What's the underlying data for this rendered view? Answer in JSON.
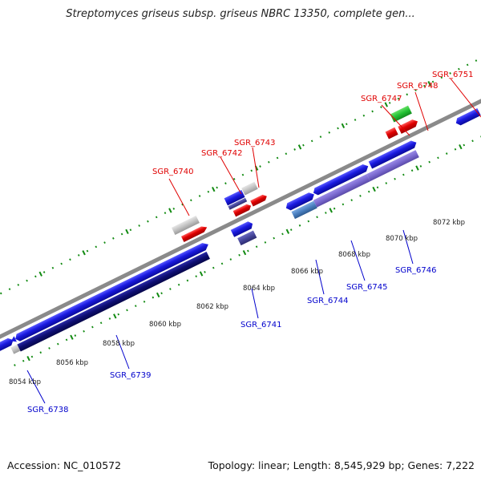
{
  "title": "Streptomyces griseus subsp. griseus NBRC 13350, complete gen...",
  "footer": {
    "accession": "Accession: NC_010572",
    "stats": "Topology: linear; Length: 8,545,929 bp; Genes: 7,222"
  },
  "colors": {
    "backbone": "#8a8a8a",
    "tick": "#118a11",
    "forward_cds": "#1a1ae0",
    "reverse_cds": "#e00000",
    "blue_label": "#0000cc",
    "red_label": "#e00000",
    "other_feature": "#c0c0c0",
    "rna_feature": "#22c033",
    "dark_block": "#0d0d70",
    "purple_block": "#7b6ad0",
    "steel_block": "#4a7fc0"
  },
  "scale_labels": [
    "8054 kbp",
    "8056 kbp",
    "8058 kbp",
    "8060 kbp",
    "8062 kbp",
    "8064 kbp",
    "8066 kbp",
    "8068 kbp",
    "8070 kbp",
    "8072 kbp"
  ],
  "upper_genes": [
    "SGR_6740",
    "SGR_6742",
    "SGR_6743",
    "SGR_6747",
    "SGR_6748",
    "SGR_6751"
  ],
  "lower_genes": [
    "SGR_6738",
    "SGR_6739",
    "SGR_6741",
    "SGR_6744",
    "SGR_6745",
    "SGR_6746"
  ]
}
